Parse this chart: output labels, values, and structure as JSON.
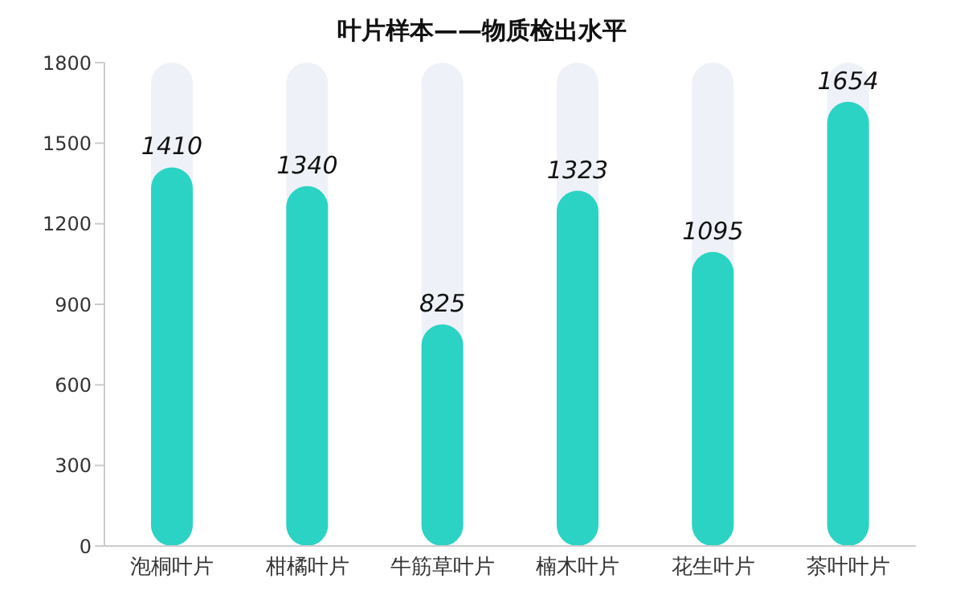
{
  "chart_data": {
    "type": "bar",
    "title": "叶片样本——物质检出水平",
    "categories": [
      "泡桐叶片",
      "柑橘叶片",
      "牛筋草叶片",
      "楠木叶片",
      "花生叶片",
      "茶叶叶片"
    ],
    "series": [
      {
        "color": "#2bd3c4",
        "values": [
          1410,
          1340,
          825,
          1323,
          1095,
          1654
        ]
      }
    ],
    "ylim": [
      0,
      1800
    ],
    "yticks": [
      0,
      300,
      600,
      900,
      1200,
      1500,
      1800
    ],
    "grid": false,
    "data_labels": true
  }
}
